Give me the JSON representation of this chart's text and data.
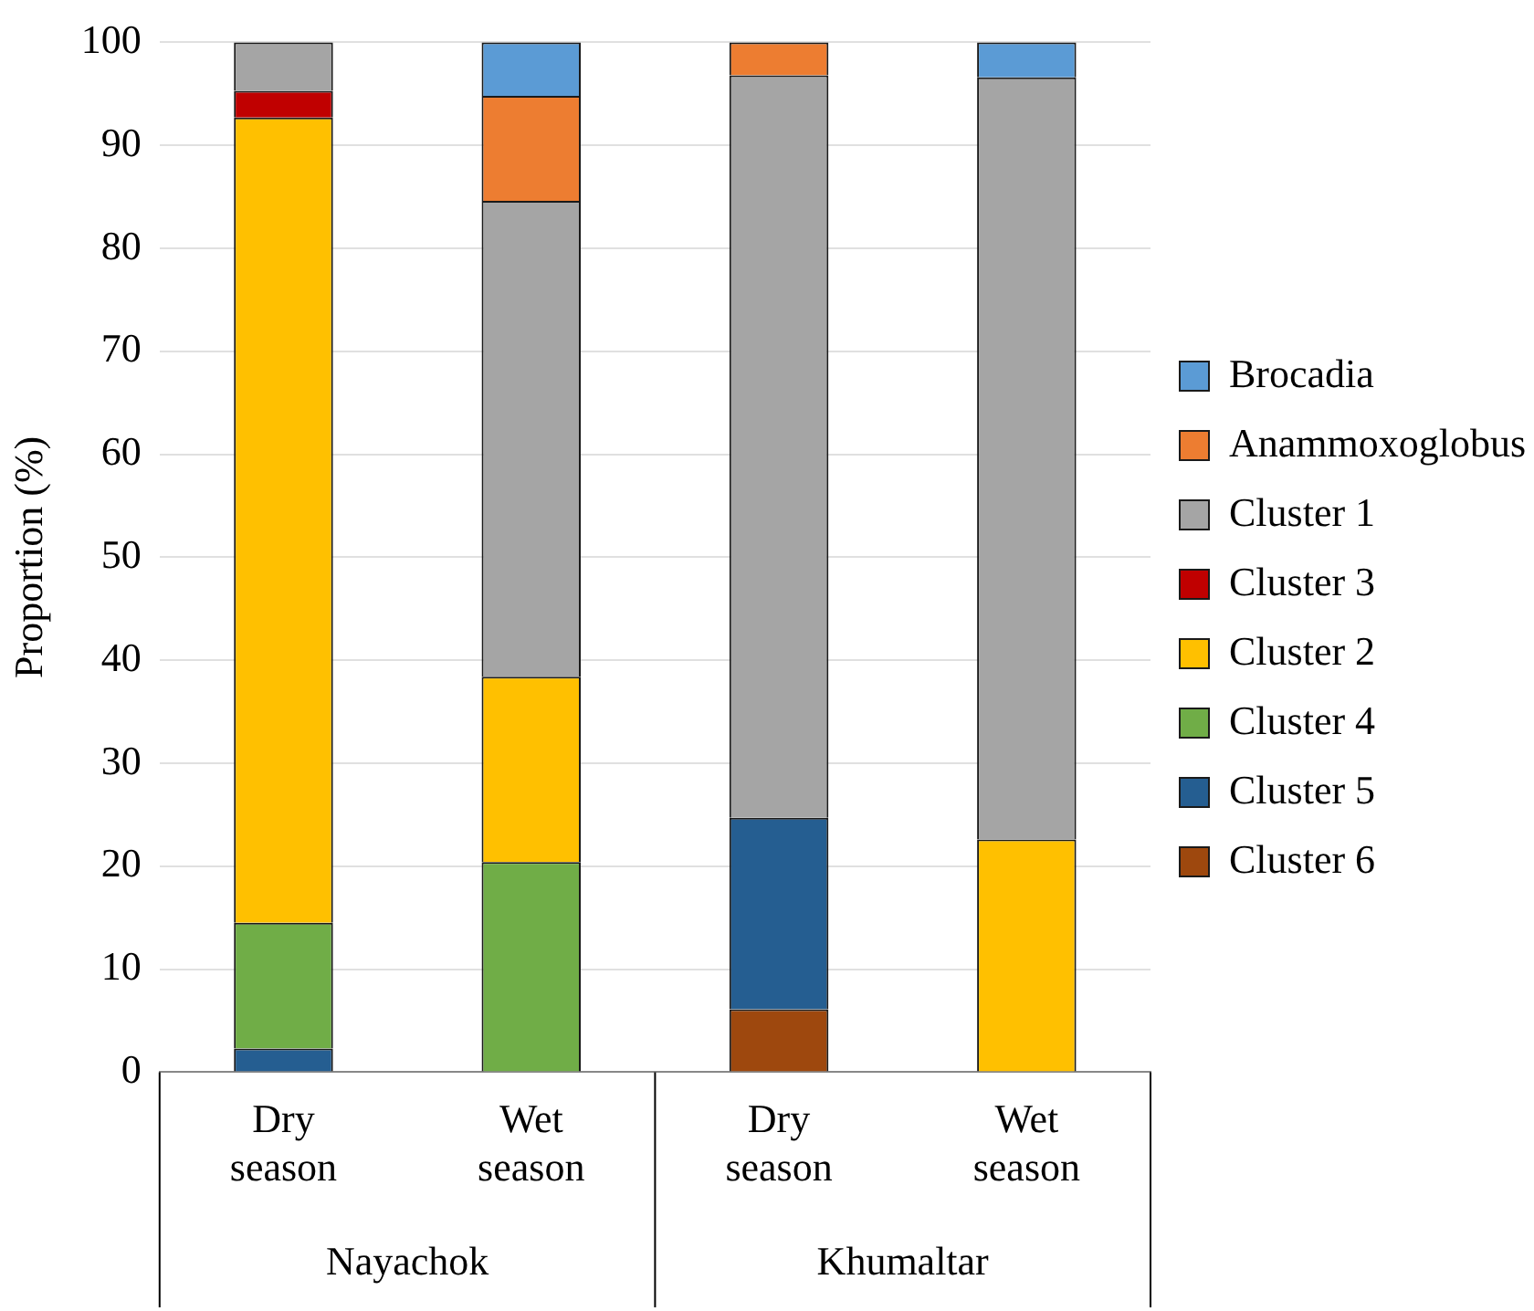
{
  "chart_data": {
    "type": "bar",
    "stacked": true,
    "ylabel": "Proportion (%)",
    "categories": [
      "Dry season",
      "Wet season",
      "Dry season",
      "Wet season"
    ],
    "annotations": [
      "Nayachok",
      "Khumaltar"
    ],
    "ylim": [
      0,
      100
    ],
    "yticks": [
      0,
      10,
      20,
      30,
      40,
      50,
      60,
      70,
      80,
      90,
      100
    ],
    "grid": "y",
    "legend": "right",
    "series": [
      {
        "name": "Cluster 6",
        "color": "#9e480e",
        "values": [
          null,
          null,
          6.1,
          null
        ]
      },
      {
        "name": "Cluster 5",
        "color": "#255e91",
        "values": [
          2.3,
          null,
          18.6,
          null
        ]
      },
      {
        "name": "Cluster 4",
        "color": "#70ad47",
        "values": [
          12.2,
          20.4,
          null,
          null
        ]
      },
      {
        "name": "Cluster 2",
        "color": "#ffc000",
        "values": [
          78.2,
          18.0,
          null,
          22.6
        ]
      },
      {
        "name": "Cluster 3",
        "color": "#c00000",
        "values": [
          2.6,
          null,
          null,
          null
        ]
      },
      {
        "name": "Cluster 1",
        "color": "#a5a5a5",
        "values": [
          4.7,
          46.2,
          72.1,
          74.0
        ]
      },
      {
        "name": "Anammoxoglobus",
        "color": "#ed7d31",
        "values": [
          null,
          10.2,
          3.2,
          null
        ]
      },
      {
        "name": "Brocadia",
        "color": "#5b9bd5",
        "values": [
          null,
          5.2,
          null,
          3.4
        ]
      }
    ]
  }
}
